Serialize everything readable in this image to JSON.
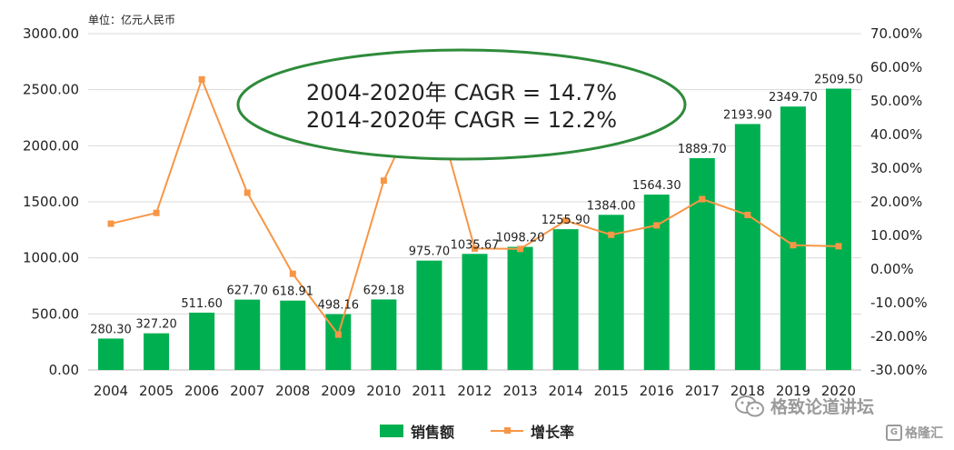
{
  "unit_label": "单位：亿元人民币",
  "annotation": {
    "line1": "2004-2020年 CAGR = 14.7%",
    "line2": "2014-2020年 CAGR = 12.2%"
  },
  "watermark": {
    "text": "格致论道讲坛",
    "icon": "wechat-icon"
  },
  "brand_mark": {
    "text": "格隆汇",
    "icon": "g-icon"
  },
  "colors": {
    "bar": "#00b050",
    "line": "#f79646",
    "ellipse": "#2e8b3a",
    "grid": "#d9d9d9"
  },
  "chart_data": {
    "type": "bar",
    "categories": [
      "2004",
      "2005",
      "2006",
      "2007",
      "2008",
      "2009",
      "2010",
      "2011",
      "2012",
      "2013",
      "2014",
      "2015",
      "2016",
      "2017",
      "2018",
      "2019",
      "2020"
    ],
    "series": [
      {
        "name": "销售额",
        "type": "bar",
        "axis": "left",
        "values": [
          280.3,
          327.2,
          511.6,
          627.7,
          618.91,
          498.16,
          629.18,
          975.7,
          1035.67,
          1098.2,
          1255.9,
          1384.0,
          1564.3,
          1889.7,
          2193.9,
          2349.7,
          2509.5
        ],
        "labels": [
          "280.30",
          "327.20",
          "511.60",
          "627.70",
          "618.91",
          "498.16",
          "629.18",
          "975.70",
          "1035.67",
          "1098.20",
          "1255.90",
          "1384.00",
          "1564.30",
          "1889.70",
          "2193.90",
          "2349.70",
          "2509.50"
        ]
      },
      {
        "name": "增长率",
        "type": "line",
        "axis": "right",
        "values": [
          13.5,
          16.7,
          56.4,
          22.7,
          -1.4,
          -19.5,
          26.3,
          55.1,
          6.1,
          6.0,
          14.4,
          10.2,
          13.0,
          20.8,
          16.1,
          7.1,
          6.8
        ]
      }
    ],
    "y_left": {
      "min": 0,
      "max": 3000,
      "step": 500,
      "tick_labels": [
        "0.00",
        "500.00",
        "1000.00",
        "1500.00",
        "2000.00",
        "2500.00",
        "3000.00"
      ]
    },
    "y_right": {
      "min": -30,
      "max": 70,
      "step": 10,
      "tick_labels": [
        "-30.00%",
        "-20.00%",
        "-10.00%",
        "0.00%",
        "10.00%",
        "20.00%",
        "30.00%",
        "40.00%",
        "50.00%",
        "60.00%",
        "70.00%"
      ]
    },
    "grid": true,
    "legend_position": "bottom-center"
  }
}
